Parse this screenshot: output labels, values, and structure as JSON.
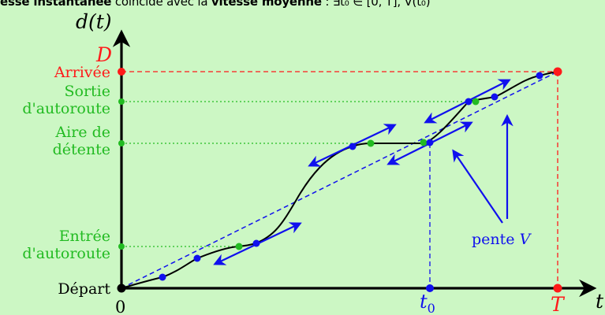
{
  "banner": {
    "part1": "esse instantanée",
    "part2": " coïncide avec la ",
    "part3": "vitesse moyenne",
    "part4": " : ∃t₀ ∈ [0, T], V(t₀)"
  },
  "axes": {
    "y_label": "d(t)",
    "x_label": "t"
  },
  "labels": {
    "D": "D",
    "arrivee": "Arrivée",
    "sortie_1": "Sortie",
    "sortie_2": "d'autoroute",
    "aire_1": "Aire de",
    "aire_2": "détente",
    "entree_1": "Entrée",
    "entree_2": "d'autoroute",
    "depart": "Départ",
    "zero": "0",
    "t0": "t",
    "t0_sub": "0",
    "T": "T",
    "pente": "pente ",
    "pente_V": "V"
  },
  "colors": {
    "red": "#ff1a1a",
    "green": "#22bb22",
    "blue": "#1010ee",
    "curve": "#000000",
    "background": "#ccf7c4"
  }
}
